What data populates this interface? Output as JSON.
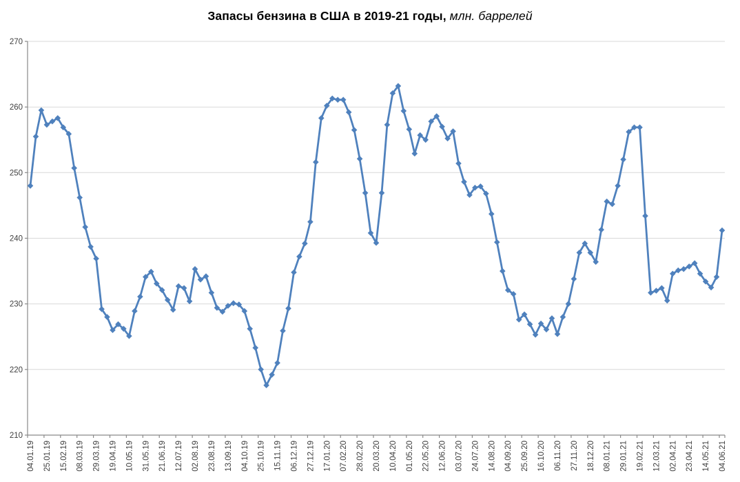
{
  "title": {
    "main": "Запасы бензина в США в 2019-21 годы,",
    "unit": " млн. баррелей"
  },
  "chart_data": {
    "type": "line",
    "title": "Запасы бензина в США в 2019-21 годы, млн. баррелей",
    "xlabel": "",
    "ylabel": "",
    "ylim": [
      210,
      270
    ],
    "y_ticks": [
      210,
      220,
      230,
      240,
      250,
      260,
      270
    ],
    "grid": "horizontal",
    "legend": "none",
    "marker": "diamond",
    "label_every_n_points": 3,
    "colors": {
      "line": "#4F81BD",
      "grid": "#D9D9D9",
      "axis": "#898989",
      "tick_text": "#404040"
    },
    "x_tick_labels": [
      "04.01.19",
      "25.01.19",
      "15.02.19",
      "08.03.19",
      "29.03.19",
      "19.04.19",
      "10.05.19",
      "31.05.19",
      "21.06.19",
      "12.07.19",
      "02.08.19",
      "23.08.19",
      "13.09.19",
      "04.10.19",
      "25.10.19",
      "15.11.19",
      "06.12.19",
      "27.12.19",
      "17.01.20",
      "07.02.20",
      "28.02.20",
      "20.03.20",
      "10.04.20",
      "01.05.20",
      "22.05.20",
      "12.06.20",
      "03.07.20",
      "24.07.20",
      "14.08.20",
      "04.09.20",
      "25.09.20",
      "16.10.20",
      "06.11.20",
      "27.11.20",
      "18.12.20",
      "08.01.21",
      "29.01.21",
      "19.02.21",
      "12.03.21",
      "02.04.21",
      "23.04.21",
      "14.05.21",
      "04.06.21"
    ],
    "values": [
      248.0,
      255.5,
      259.5,
      257.3,
      257.8,
      258.3,
      256.9,
      255.9,
      250.7,
      246.2,
      241.7,
      238.7,
      236.9,
      229.2,
      228.0,
      226.0,
      226.9,
      226.2,
      225.1,
      228.9,
      231.1,
      234.1,
      234.9,
      233.1,
      232.1,
      230.6,
      229.1,
      232.7,
      232.4,
      230.4,
      235.3,
      233.7,
      234.2,
      231.7,
      229.4,
      228.8,
      229.7,
      230.1,
      229.9,
      228.9,
      226.2,
      223.3,
      220.0,
      217.6,
      219.2,
      221.0,
      225.9,
      229.3,
      234.8,
      237.2,
      239.2,
      242.5,
      251.6,
      258.3,
      260.2,
      261.3,
      261.1,
      261.1,
      259.2,
      256.5,
      252.1,
      246.9,
      240.8,
      239.3,
      246.9,
      257.3,
      262.1,
      263.2,
      259.4,
      256.6,
      252.9,
      255.7,
      255.0,
      257.8,
      258.6,
      257.0,
      255.2,
      256.3,
      251.4,
      248.6,
      246.6,
      247.7,
      247.9,
      246.8,
      243.7,
      239.4,
      235.0,
      232.1,
      231.5,
      227.6,
      228.4,
      226.9,
      225.3,
      227.0,
      226.1,
      227.8,
      225.4,
      228.0,
      230.0,
      233.8,
      237.8,
      239.2,
      237.8,
      236.4,
      241.3,
      245.6,
      245.2,
      248.0,
      252.0,
      256.2,
      256.9,
      256.9,
      243.4,
      231.7,
      232.0,
      232.4,
      230.5,
      234.6,
      235.1,
      235.3,
      235.7,
      236.2,
      234.6,
      233.4,
      232.5,
      234.1,
      241.2
    ]
  }
}
